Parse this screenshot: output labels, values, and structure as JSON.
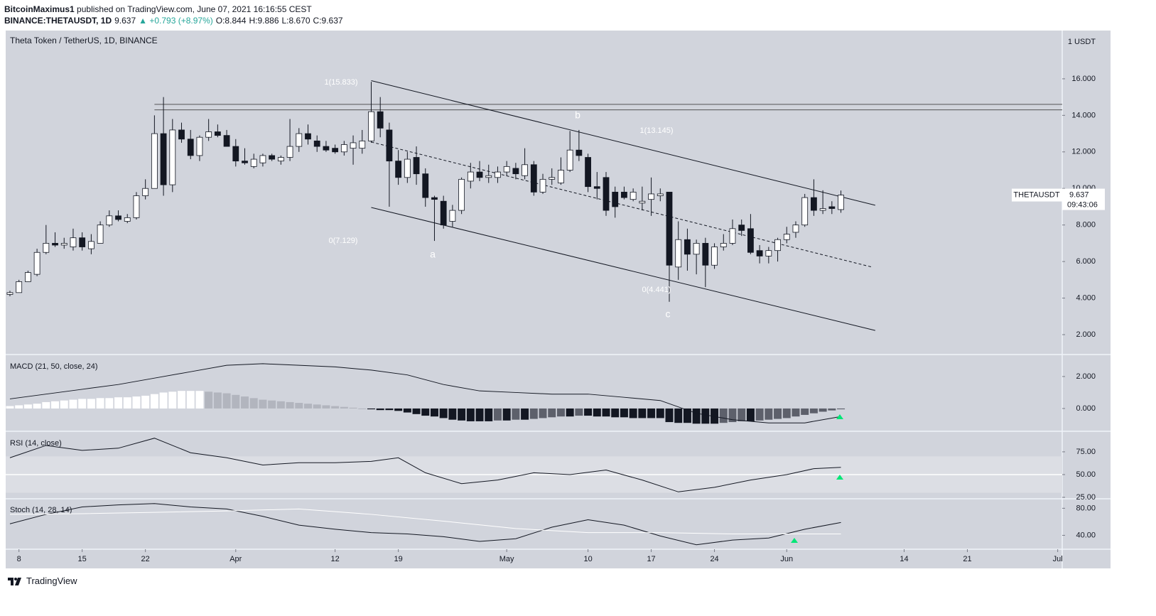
{
  "header": {
    "publisher": "BitcoinMaximus1",
    "published": "published on TradingView.com, June 07, 2021 16:16:55 CEST",
    "symbol": "BINANCE:THETAUSDT, 1D",
    "last": "9.637",
    "change": "▲ +0.793 (+8.97%)",
    "open": "O:8.844",
    "high": "H:9.886",
    "low": "L:8.670",
    "close": "C:9.637"
  },
  "footer": {
    "brand": "TradingView"
  },
  "chart_data": [
    {
      "type": "candlestick",
      "title": "Theta Token / TetherUS, 1D, BINANCE",
      "axis_unit": "1 USDT",
      "xlim": [
        -0.47,
        116.5
      ],
      "xticks": [
        {
          "value": 1,
          "label": "8"
        },
        {
          "value": 8,
          "label": "15"
        },
        {
          "value": 15,
          "label": "22"
        },
        {
          "value": 25,
          "label": "Apr"
        },
        {
          "value": 36,
          "label": "12"
        },
        {
          "value": 43,
          "label": "19"
        },
        {
          "value": 55,
          "label": "May"
        },
        {
          "value": 64,
          "label": "10"
        },
        {
          "value": 71,
          "label": "17"
        },
        {
          "value": 78,
          "label": "24"
        },
        {
          "value": 86,
          "label": "Jun"
        },
        {
          "value": 99,
          "label": "14"
        },
        {
          "value": 106,
          "label": "21"
        },
        {
          "value": 116,
          "label": "Jul"
        }
      ],
      "ylim": [
        0.95,
        18.64
      ],
      "yticks": [
        {
          "value": 2,
          "label": "2.000"
        },
        {
          "value": 4,
          "label": "4.000"
        },
        {
          "value": 6,
          "label": "6.000"
        },
        {
          "value": 8,
          "label": "8.000"
        },
        {
          "value": 10,
          "label": "10.000"
        },
        {
          "value": 12,
          "label": "12.000"
        },
        {
          "value": 14,
          "label": "14.000"
        },
        {
          "value": 16,
          "label": "16.000"
        }
      ],
      "up_color": "#ffffff",
      "down_color": "#131722",
      "ohlc": [
        [
          4.2,
          4.4,
          4.1,
          4.3
        ],
        [
          4.3,
          5.0,
          4.3,
          4.9
        ],
        [
          4.9,
          5.5,
          4.9,
          5.4
        ],
        [
          5.3,
          6.7,
          5.2,
          6.5
        ],
        [
          6.5,
          8.0,
          6.4,
          7.0
        ],
        [
          7.0,
          7.6,
          6.8,
          6.9
        ],
        [
          6.9,
          7.3,
          6.7,
          7.0
        ],
        [
          6.8,
          7.8,
          6.6,
          7.3
        ],
        [
          7.3,
          7.6,
          6.6,
          6.8
        ],
        [
          6.7,
          7.5,
          6.4,
          7.1
        ],
        [
          7.0,
          8.2,
          7.0,
          8.0
        ],
        [
          8.0,
          8.8,
          7.9,
          8.5
        ],
        [
          8.5,
          8.8,
          8.2,
          8.3
        ],
        [
          8.2,
          8.6,
          8.1,
          8.4
        ],
        [
          8.4,
          9.8,
          8.3,
          9.6
        ],
        [
          9.6,
          10.5,
          9.4,
          10.0
        ],
        [
          10.0,
          14.0,
          10.0,
          13.0
        ],
        [
          13.0,
          15.0,
          9.6,
          10.2
        ],
        [
          10.2,
          13.8,
          9.8,
          13.2
        ],
        [
          13.2,
          13.6,
          12.5,
          12.7
        ],
        [
          12.7,
          13.2,
          11.6,
          11.8
        ],
        [
          11.8,
          12.9,
          11.5,
          12.8
        ],
        [
          12.8,
          13.8,
          12.6,
          13.1
        ],
        [
          13.1,
          13.5,
          12.8,
          12.9
        ],
        [
          12.9,
          13.2,
          12.3,
          12.3
        ],
        [
          12.3,
          12.7,
          11.2,
          11.5
        ],
        [
          11.5,
          12.2,
          11.3,
          11.4
        ],
        [
          11.2,
          11.9,
          11.1,
          11.6
        ],
        [
          11.4,
          11.9,
          11.2,
          11.8
        ],
        [
          11.8,
          11.9,
          11.5,
          11.6
        ],
        [
          11.5,
          11.8,
          11.3,
          11.7
        ],
        [
          11.7,
          13.8,
          11.5,
          12.3
        ],
        [
          12.3,
          13.3,
          12.0,
          13.0
        ],
        [
          13.0,
          13.5,
          12.4,
          12.7
        ],
        [
          12.6,
          12.9,
          12.0,
          12.3
        ],
        [
          12.3,
          12.6,
          12.0,
          12.1
        ],
        [
          12.2,
          12.4,
          11.9,
          12.0
        ],
        [
          12.0,
          12.6,
          11.8,
          12.4
        ],
        [
          12.2,
          12.9,
          11.3,
          12.5
        ],
        [
          12.2,
          13.2,
          11.9,
          12.6
        ],
        [
          12.6,
          15.833,
          12.5,
          14.2
        ],
        [
          14.2,
          15.0,
          12.8,
          13.3
        ],
        [
          13.2,
          13.6,
          9.0,
          11.5
        ],
        [
          11.5,
          12.1,
          10.2,
          10.6
        ],
        [
          10.6,
          12.0,
          10.3,
          11.6
        ],
        [
          11.7,
          12.3,
          10.2,
          10.8
        ],
        [
          10.8,
          11.1,
          9.0,
          9.5
        ],
        [
          9.5,
          9.6,
          7.129,
          9.4
        ],
        [
          9.3,
          9.6,
          7.8,
          8.0
        ],
        [
          8.2,
          9.1,
          7.9,
          8.8
        ],
        [
          8.8,
          10.6,
          8.6,
          10.5
        ],
        [
          10.4,
          11.4,
          10.0,
          10.9
        ],
        [
          10.9,
          11.5,
          10.4,
          10.6
        ],
        [
          10.6,
          11.3,
          10.3,
          10.7
        ],
        [
          10.6,
          11.2,
          10.3,
          10.9
        ],
        [
          10.9,
          11.5,
          10.7,
          11.2
        ],
        [
          11.1,
          11.4,
          10.5,
          10.8
        ],
        [
          10.7,
          12.2,
          10.5,
          11.3
        ],
        [
          11.3,
          11.5,
          9.6,
          9.8
        ],
        [
          9.8,
          10.8,
          9.7,
          10.5
        ],
        [
          10.5,
          11.1,
          10.2,
          10.6
        ],
        [
          10.3,
          11.7,
          10.2,
          11.0
        ],
        [
          11.0,
          13.145,
          10.9,
          12.1
        ],
        [
          12.1,
          13.2,
          11.5,
          11.8
        ],
        [
          11.7,
          11.9,
          9.8,
          10.1
        ],
        [
          10.1,
          10.9,
          9.4,
          10.0
        ],
        [
          10.6,
          10.9,
          8.5,
          8.8
        ],
        [
          9.8,
          10.1,
          8.4,
          9.0
        ],
        [
          9.8,
          10.1,
          9.4,
          9.5
        ],
        [
          9.4,
          10.0,
          9.3,
          9.8
        ],
        [
          9.2,
          10.1,
          8.8,
          9.3
        ],
        [
          9.4,
          10.6,
          8.5,
          9.7
        ],
        [
          9.6,
          10.0,
          9.3,
          9.7
        ],
        [
          9.8,
          9.8,
          3.8,
          5.8
        ],
        [
          5.7,
          8.2,
          5.0,
          7.2
        ],
        [
          7.2,
          7.8,
          5.5,
          6.4
        ],
        [
          6.4,
          7.2,
          5.3,
          7.0
        ],
        [
          7.0,
          7.3,
          4.6,
          5.8
        ],
        [
          5.8,
          7.0,
          5.6,
          6.8
        ],
        [
          6.8,
          7.5,
          6.6,
          7.0
        ],
        [
          7.0,
          8.3,
          6.9,
          7.8
        ],
        [
          8.0,
          8.3,
          7.4,
          7.7
        ],
        [
          7.8,
          8.6,
          6.4,
          6.5
        ],
        [
          6.6,
          6.9,
          5.9,
          6.3
        ],
        [
          6.3,
          6.8,
          5.9,
          6.6
        ],
        [
          6.6,
          7.3,
          6.0,
          7.2
        ],
        [
          7.2,
          7.9,
          7.0,
          7.5
        ],
        [
          7.6,
          8.2,
          7.3,
          8.0
        ],
        [
          8.0,
          9.7,
          7.9,
          9.5
        ],
        [
          9.5,
          10.5,
          8.5,
          8.8
        ],
        [
          8.8,
          9.9,
          8.6,
          8.9
        ],
        [
          9.0,
          9.3,
          8.6,
          8.9
        ],
        [
          8.844,
          9.886,
          8.67,
          9.637
        ]
      ],
      "levels": [
        14.6,
        14.3
      ],
      "trendlines": [
        {
          "points": [
            [
              40,
              15.9
            ],
            [
              95.8,
              9.08
            ]
          ],
          "dashed": false
        },
        {
          "points": [
            [
              40,
              8.96
            ],
            [
              95.8,
              2.23
            ]
          ],
          "dashed": false
        },
        {
          "points": [
            [
              40,
              12.54
            ],
            [
              95.5,
              5.69
            ]
          ],
          "dashed": true
        }
      ],
      "annotations": [
        "1(15.833)",
        "0(7.129)",
        "1(13.145)",
        "0(4.441)",
        "b",
        "a",
        "c"
      ],
      "price_label": {
        "symbol": "THETAUSDT",
        "value": "9.637",
        "countdown": "09:43:06"
      }
    },
    {
      "type": "macd",
      "title": "MACD (21, 50, close, 24)",
      "ylim": [
        -1.38,
        3.33
      ],
      "yticks": [
        {
          "value": 0,
          "label": "0.000"
        },
        {
          "value": 2,
          "label": "2.000"
        }
      ],
      "histogram": [
        0.15,
        0.2,
        0.25,
        0.3,
        0.4,
        0.45,
        0.5,
        0.55,
        0.6,
        0.6,
        0.65,
        0.65,
        0.7,
        0.7,
        0.75,
        0.8,
        0.9,
        1.0,
        1.05,
        1.1,
        1.1,
        1.1,
        1.05,
        1.0,
        0.95,
        0.85,
        0.75,
        0.65,
        0.55,
        0.5,
        0.45,
        0.4,
        0.35,
        0.3,
        0.25,
        0.2,
        0.15,
        0.1,
        0.05,
        0,
        -0.05,
        -0.1,
        -0.1,
        -0.15,
        -0.25,
        -0.35,
        -0.45,
        -0.5,
        -0.6,
        -0.7,
        -0.75,
        -0.8,
        -0.8,
        -0.8,
        -0.75,
        -0.75,
        -0.7,
        -0.7,
        -0.65,
        -0.6,
        -0.55,
        -0.5,
        -0.5,
        -0.45,
        -0.45,
        -0.5,
        -0.5,
        -0.55,
        -0.55,
        -0.6,
        -0.6,
        -0.6,
        -0.6,
        -0.85,
        -0.9,
        -0.9,
        -0.95,
        -0.95,
        -0.95,
        -0.9,
        -0.85,
        -0.8,
        -0.8,
        -0.75,
        -0.7,
        -0.65,
        -0.6,
        -0.5,
        -0.4,
        -0.3,
        -0.2,
        -0.12,
        -0.05
      ],
      "series": [
        {
          "color": "#131722",
          "x": [
            0,
            4,
            8,
            12,
            16,
            20,
            24,
            28,
            32,
            36,
            40,
            44,
            48,
            52,
            56,
            60,
            64,
            68,
            72,
            76,
            80,
            84,
            88,
            92
          ],
          "values": [
            0.6,
            0.9,
            1.2,
            1.5,
            1.9,
            2.3,
            2.7,
            2.8,
            2.7,
            2.6,
            2.4,
            2.1,
            1.5,
            1.1,
            1.0,
            0.9,
            0.9,
            0.7,
            0.5,
            -0.3,
            -0.7,
            -0.9,
            -0.9,
            -0.5
          ]
        }
      ]
    },
    {
      "type": "rsi",
      "title": "RSI (14, close)",
      "ylim": [
        24.2,
        96.8
      ],
      "yticks": [
        {
          "value": 25,
          "label": "25.00"
        },
        {
          "value": 50,
          "label": "50.00"
        },
        {
          "value": 75,
          "label": "75.00"
        }
      ],
      "band": [
        30,
        70
      ],
      "midline": 50,
      "series": [
        {
          "color": "#131722",
          "x": [
            0,
            4,
            8,
            12,
            16,
            20,
            24,
            28,
            32,
            36,
            40,
            43,
            46,
            50,
            54,
            58,
            62,
            66,
            70,
            74,
            78,
            82,
            86,
            89,
            92
          ],
          "values": [
            68.5,
            82,
            76.6,
            79,
            90,
            74,
            68.5,
            60.5,
            63,
            63,
            64.5,
            68.5,
            52,
            40,
            44,
            52,
            50,
            55,
            44,
            31,
            36,
            44,
            50,
            56.5,
            58
          ]
        }
      ]
    },
    {
      "type": "stoch",
      "title": "Stoch (14, 28, 14)",
      "ylim": [
        20.5,
        93
      ],
      "yticks": [
        {
          "value": 40,
          "label": "40.00"
        },
        {
          "value": 80,
          "label": "80.00"
        }
      ],
      "series": [
        {
          "color": "#131722",
          "x": [
            0,
            4,
            8,
            12,
            16,
            20,
            24,
            28,
            32,
            36,
            40,
            44,
            48,
            52,
            56,
            60,
            64,
            68,
            72,
            76,
            80,
            84,
            88,
            92
          ],
          "values": [
            57,
            71,
            82,
            85,
            87,
            82,
            79,
            68,
            55,
            49,
            44,
            42,
            38,
            31,
            35,
            52,
            63,
            55,
            39,
            26,
            33,
            36,
            49,
            59
          ]
        },
        {
          "color": "#ffffff",
          "x": [
            0,
            8,
            16,
            24,
            32,
            40,
            48,
            56,
            64,
            72,
            80,
            88,
            92
          ],
          "values": [
            71,
            72,
            74,
            76,
            79,
            71,
            61,
            50,
            44,
            44,
            42,
            42,
            42
          ]
        }
      ]
    }
  ]
}
